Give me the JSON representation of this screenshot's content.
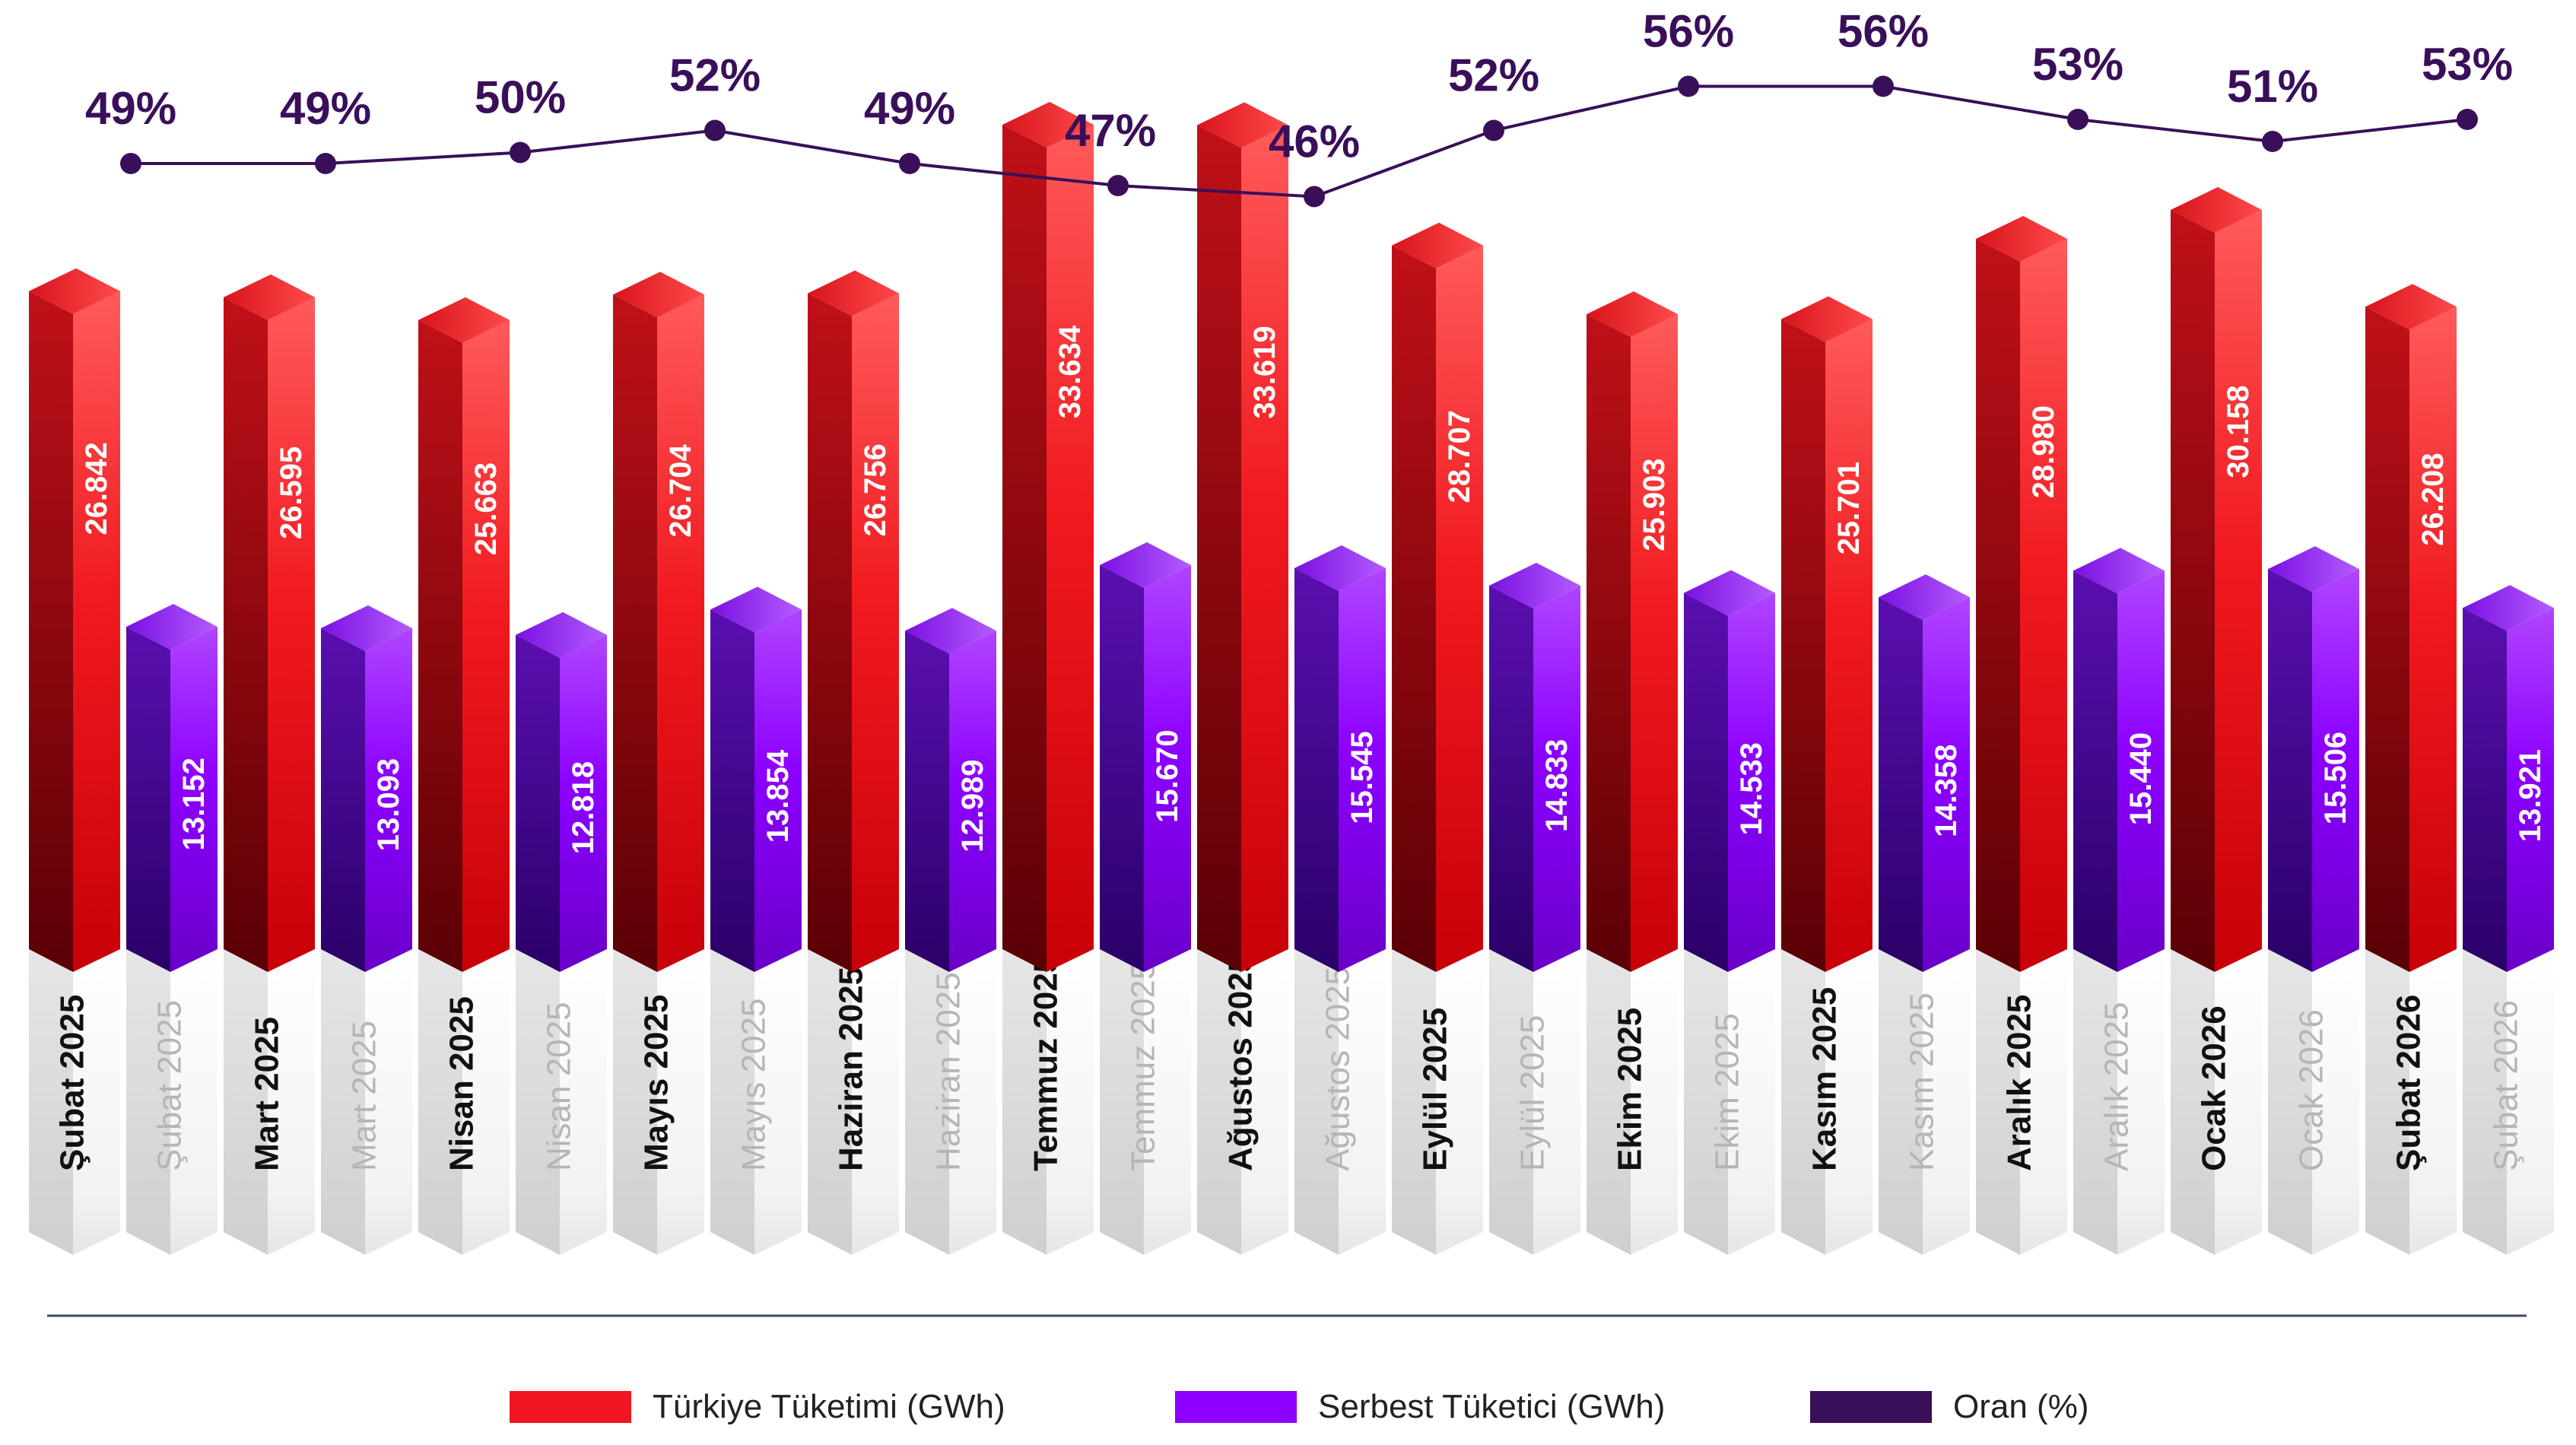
{
  "colors": {
    "turkiye": "#e8101a",
    "serbest": "#8a00ff",
    "oran": "#3a0f5a",
    "label_dark": "#111111",
    "label_light": "#b5b5b5",
    "baseline": "#3b4a6b"
  },
  "legend": [
    {
      "label": "Türkiye Tüketimi (GWh)",
      "color": "#f0151f"
    },
    {
      "label": "Serbest Tüketici (GWh)",
      "color": "#8c00ff"
    },
    {
      "label": "Oran (%)",
      "color": "#3a0f5a"
    }
  ],
  "chart_data": {
    "type": "bar",
    "categories": [
      "Şubat 2025",
      "Mart 2025",
      "Nisan 2025",
      "Mayıs 2025",
      "Haziran 2025",
      "Temmuz 2025",
      "Ağustos 2025",
      "Eylül 2025",
      "Ekim 2025",
      "Kasım 2025",
      "Aralık 2025",
      "Ocak 2026",
      "Şubat 2026"
    ],
    "series": [
      {
        "name": "Türkiye Tüketimi (GWh)",
        "type": "bar",
        "values": [
          26842,
          26595,
          25663,
          26704,
          26756,
          33634,
          33619,
          28707,
          25903,
          25701,
          28980,
          30158,
          26208
        ],
        "labels": [
          "26.842",
          "26.595",
          "25.663",
          "26.704",
          "26.756",
          "33.634",
          "33.619",
          "28.707",
          "25.903",
          "25.701",
          "28.980",
          "30.158",
          "26.208"
        ]
      },
      {
        "name": "Serbest Tüketici (GWh)",
        "type": "bar",
        "values": [
          13152,
          13093,
          12818,
          13854,
          12989,
          15670,
          15545,
          14833,
          14533,
          14358,
          15440,
          15506,
          13921
        ],
        "labels": [
          "13.152",
          "13.093",
          "12.818",
          "13.854",
          "12.989",
          "15.670",
          "15.545",
          "14.833",
          "14.533",
          "14.358",
          "15.440",
          "15.506",
          "13.921"
        ]
      },
      {
        "name": "Oran (%)",
        "type": "line",
        "values": [
          49,
          49,
          50,
          52,
          49,
          47,
          46,
          52,
          56,
          56,
          53,
          51,
          53
        ],
        "labels": [
          "49%",
          "49%",
          "50%",
          "52%",
          "49%",
          "47%",
          "46%",
          "52%",
          "56%",
          "56%",
          "53%",
          "51%",
          "53%"
        ]
      }
    ],
    "grid": false,
    "legend_position": "bottom"
  }
}
